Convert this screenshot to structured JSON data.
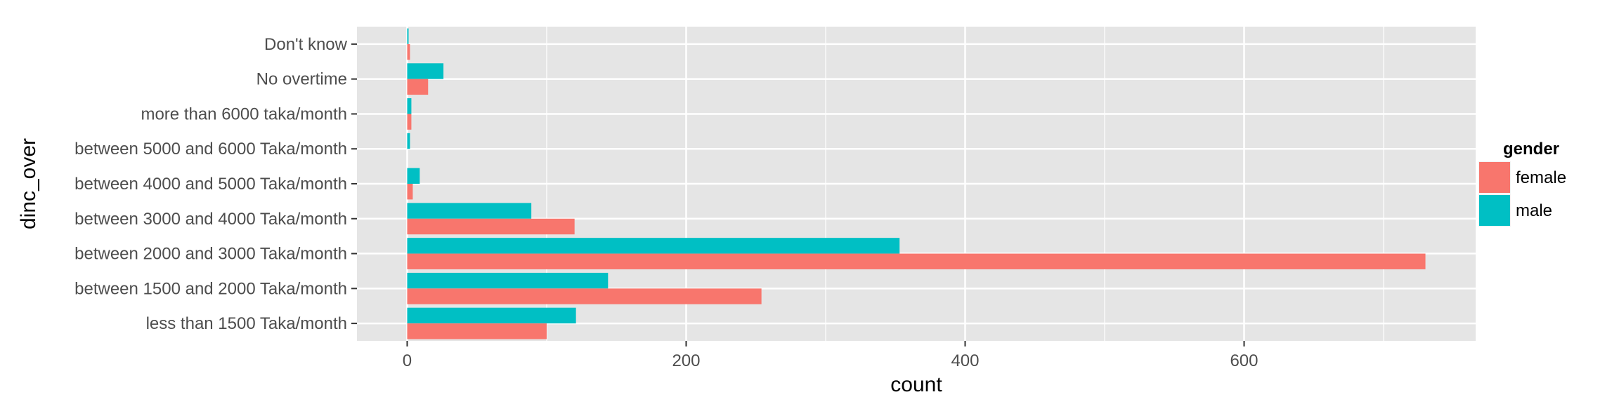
{
  "chart_data": {
    "type": "bar",
    "orientation": "horizontal",
    "categories": [
      "Don't know",
      "No overtime",
      "more than 6000 taka/month",
      "between 5000 and 6000 Taka/month",
      "between 4000 and 5000 Taka/month",
      "between 3000 and 4000 Taka/month",
      "between 2000 and 3000 Taka/month",
      "between 1500 and 2000 Taka/month",
      "less than 1500 Taka/month"
    ],
    "series": [
      {
        "name": "female",
        "color": "#F8766D",
        "values": [
          2,
          15,
          3,
          0,
          4,
          120,
          730,
          254,
          100
        ]
      },
      {
        "name": "male",
        "color": "#00BFC4",
        "values": [
          1,
          26,
          3,
          2,
          9,
          89,
          353,
          144,
          121
        ]
      }
    ],
    "xlabel": "count",
    "ylabel": "dinc_over",
    "xlim": [
      -36,
      766
    ],
    "xticks": [
      0,
      200,
      400,
      600
    ],
    "xtick_labels": [
      "0",
      "200",
      "400",
      "600"
    ],
    "grid": true,
    "legend": {
      "title": "gender",
      "position": "right",
      "entries": [
        "female",
        "male"
      ]
    },
    "panel_background": "#E5E5E5",
    "grid_color": "#FFFFFF"
  }
}
